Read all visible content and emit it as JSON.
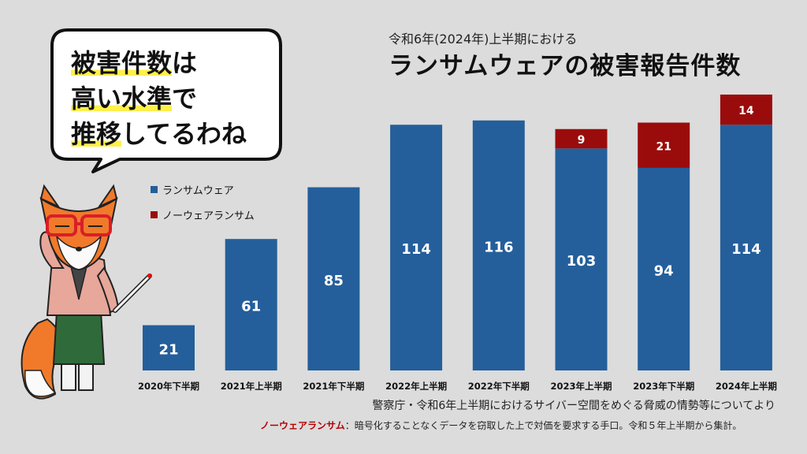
{
  "header": {
    "subtitle": "令和6年(2024年)上半期における",
    "title": "ランサムウェアの被害報告件数"
  },
  "speech_bubble": {
    "lines": [
      {
        "pre": "",
        "hl": "被害件数",
        "post": "は"
      },
      {
        "pre": "",
        "hl": "高い水準",
        "post": "で"
      },
      {
        "pre": "",
        "hl": "推移",
        "post": "してるわね"
      }
    ]
  },
  "colors": {
    "ransomware": "#245f9b",
    "no_ware": "#9a0c0c",
    "background": "#dcdcdc"
  },
  "chart_data": {
    "type": "bar",
    "stacked": true,
    "categories": [
      "2020年下半期",
      "2021年上半期",
      "2021年下半期",
      "2022年上半期",
      "2022年下半期",
      "2023年上半期",
      "2023年下半期",
      "2024年上半期"
    ],
    "series": [
      {
        "name": "ランサムウェア",
        "values": [
          21,
          61,
          85,
          114,
          116,
          103,
          94,
          114
        ]
      },
      {
        "name": "ノーウェアランサム",
        "values": [
          null,
          null,
          null,
          null,
          null,
          9,
          21,
          14
        ]
      }
    ],
    "legend": [
      "ランサムウェア",
      "ノーウェアランサム"
    ],
    "ylim": [
      0,
      128
    ],
    "title": "ランサムウェアの被害報告件数"
  },
  "footer": {
    "source": "警察庁・令和6年上半期におけるサイバー空間をめぐる脅威の情勢等についてより",
    "note_term": "ノーウェアランサム",
    "note_text": "：暗号化することなくデータを窃取した上で対価を要求する手口。令和５年上半期から集計。"
  }
}
